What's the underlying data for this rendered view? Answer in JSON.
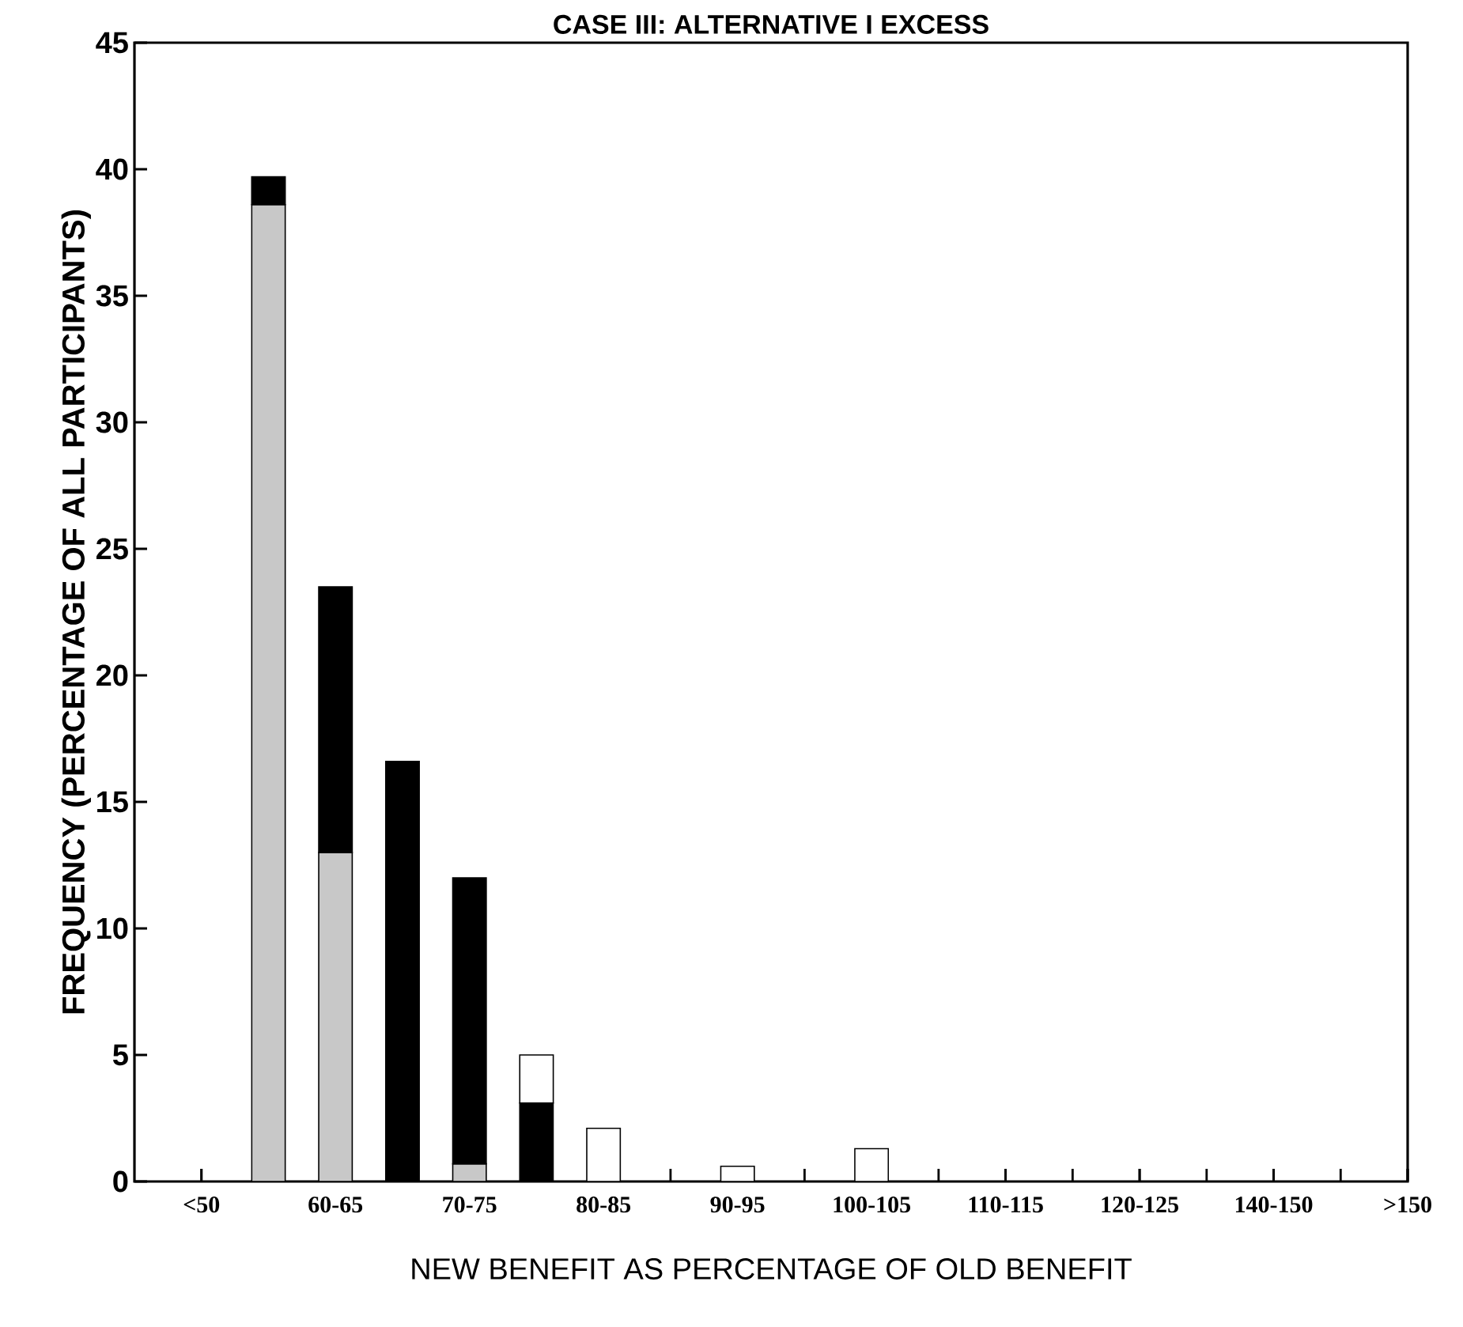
{
  "chart_data": {
    "type": "bar",
    "stacked": true,
    "title": "CASE III:  ALTERNATIVE I EXCESS",
    "xlabel": "NEW BENEFIT AS PERCENTAGE OF OLD BENEFIT",
    "ylabel": "FREQUENCY (PERCENTAGE OF ALL PARTICIPANTS)",
    "categories": [
      "<50",
      null,
      "60-65",
      null,
      "70-75",
      null,
      "80-85",
      null,
      "90-95",
      null,
      "100-105",
      null,
      "110-115",
      null,
      "120-125",
      null,
      "140-150",
      null,
      ">150"
    ],
    "series": [
      {
        "color": "#c8c8c8",
        "values": [
          null,
          38.6,
          13.0,
          null,
          0.7,
          null,
          null,
          null,
          null,
          null,
          null,
          null,
          null,
          null,
          null,
          null,
          null,
          null,
          null
        ]
      },
      {
        "color": "#000000",
        "values": [
          null,
          1.1,
          10.5,
          16.6,
          11.3,
          3.1,
          null,
          null,
          null,
          null,
          null,
          null,
          null,
          null,
          null,
          null,
          null,
          null,
          null
        ]
      },
      {
        "color": "#ffffff",
        "values": [
          null,
          null,
          null,
          null,
          null,
          1.9,
          2.1,
          null,
          0.6,
          null,
          1.3,
          null,
          null,
          null,
          null,
          null,
          null,
          null,
          null
        ]
      }
    ],
    "ylim": [
      0,
      45
    ],
    "yticks": [
      0,
      5,
      10,
      15,
      20,
      25,
      30,
      35,
      40,
      45
    ]
  }
}
